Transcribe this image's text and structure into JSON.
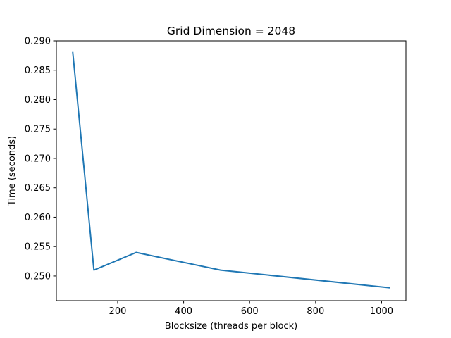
{
  "chart_data": {
    "type": "line",
    "title": "Grid Dimension = 2048",
    "xlabel": "Blocksize (threads per block)",
    "ylabel": "Time (seconds)",
    "xlim": [
      14.2,
      1073.8
    ],
    "ylim": [
      0.2458,
      0.29
    ],
    "xticks": [
      200,
      400,
      600,
      800,
      1000
    ],
    "yticks": [
      0.25,
      0.255,
      0.26,
      0.265,
      0.27,
      0.275,
      0.28,
      0.285,
      0.29
    ],
    "ytick_labels": [
      "0.250",
      "0.255",
      "0.260",
      "0.265",
      "0.270",
      "0.275",
      "0.280",
      "0.285",
      "0.290"
    ],
    "grid": false,
    "series": [
      {
        "x": [
          64,
          128,
          256,
          512,
          1024
        ],
        "values": [
          0.288,
          0.251,
          0.254,
          0.251,
          0.248
        ],
        "color": "#1f77b4"
      }
    ]
  }
}
